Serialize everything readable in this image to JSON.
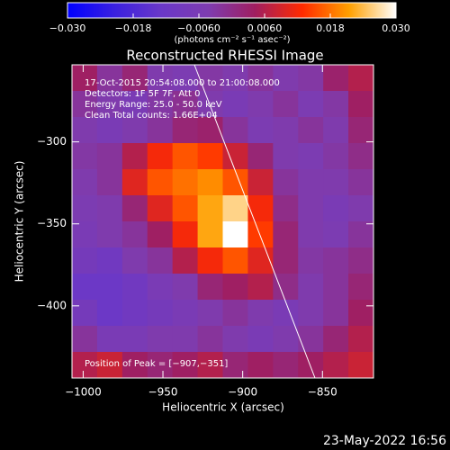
{
  "chart_data": {
    "type": "heatmap",
    "title": "Reconstructed RHESSI Image",
    "colorbar_label": "(photons cm⁻² s⁻¹ asec⁻²)",
    "x_label": "Heliocentric X (arcsec)",
    "y_label": "Heliocentric Y (arcsec)",
    "annotations": [
      "17-Oct-2015 20:54:08.000 to 21:00:08.000",
      "Detectors: 1F 5F 7F, Att 0",
      "Energy Range: 25.0 - 50.0 keV",
      "Clean    Total counts: 1.66E+04"
    ],
    "peak_label": "Position of Peak = [−907,−351]",
    "footer": "23-May-2022 16:56",
    "colormap": [
      "#0000ff",
      "#3a20e0",
      "#6a38c8",
      "#7e3cb0",
      "#a01e60",
      "#ff2a00",
      "#ffa000",
      "#ffffff"
    ],
    "clim": [
      -0.03,
      0.03
    ],
    "cticks": [
      {
        "value": -0.03,
        "label": "−0.030"
      },
      {
        "value": -0.018,
        "label": "−0.018"
      },
      {
        "value": -0.006,
        "label": "−0.0060"
      },
      {
        "value": 0.006,
        "label": "0.0060"
      },
      {
        "value": 0.018,
        "label": "0.018"
      },
      {
        "value": 0.03,
        "label": "0.030"
      }
    ],
    "xlim": [
      -1007,
      -818
    ],
    "ylim": [
      -444,
      -253
    ],
    "xticks": [
      {
        "value": -1000,
        "label": "−1000"
      },
      {
        "value": -950,
        "label": "−950"
      },
      {
        "value": -900,
        "label": "−900"
      },
      {
        "value": -850,
        "label": "−850"
      }
    ],
    "yticks": [
      {
        "value": -300,
        "label": "−300"
      },
      {
        "value": -350,
        "label": "−350"
      },
      {
        "value": -400,
        "label": "−400"
      }
    ],
    "z": [
      [
        0.004,
        -0.002,
        0.002,
        -0.004,
        -0.005,
        -0.003,
        -0.004,
        -0.002,
        -0.004,
        -0.003,
        0.003,
        0.006
      ],
      [
        -0.002,
        -0.004,
        -0.006,
        -0.003,
        -0.001,
        -0.004,
        -0.006,
        -0.004,
        -0.002,
        -0.005,
        -0.003,
        0.004
      ],
      [
        -0.004,
        -0.006,
        -0.004,
        -0.002,
        0.002,
        0.003,
        -0.002,
        -0.005,
        -0.004,
        -0.002,
        -0.004,
        0.002
      ],
      [
        -0.003,
        -0.002,
        0.006,
        0.012,
        0.016,
        0.014,
        0.008,
        0.002,
        -0.004,
        -0.005,
        -0.003,
        0.0
      ],
      [
        -0.004,
        -0.002,
        0.01,
        0.016,
        0.018,
        0.02,
        0.016,
        0.008,
        -0.002,
        -0.004,
        -0.004,
        -0.002
      ],
      [
        -0.005,
        -0.004,
        0.002,
        0.01,
        0.016,
        0.022,
        0.026,
        0.012,
        0.0,
        -0.004,
        -0.006,
        -0.004
      ],
      [
        -0.006,
        -0.004,
        -0.002,
        0.004,
        0.012,
        0.022,
        0.03,
        0.014,
        0.002,
        -0.004,
        -0.005,
        -0.002
      ],
      [
        -0.008,
        -0.01,
        -0.004,
        -0.002,
        0.006,
        0.012,
        0.016,
        0.01,
        0.002,
        -0.003,
        -0.002,
        0.0
      ],
      [
        -0.012,
        -0.012,
        -0.01,
        -0.006,
        -0.004,
        0.002,
        0.004,
        0.006,
        0.0,
        -0.004,
        -0.002,
        0.002
      ],
      [
        -0.008,
        -0.012,
        -0.01,
        -0.008,
        -0.006,
        -0.004,
        -0.002,
        -0.004,
        -0.006,
        -0.004,
        -0.002,
        0.004
      ],
      [
        -0.002,
        -0.006,
        -0.006,
        -0.004,
        -0.004,
        -0.002,
        -0.004,
        -0.006,
        -0.004,
        -0.002,
        0.002,
        0.006
      ],
      [
        0.006,
        0.008,
        0.004,
        0.002,
        0.004,
        0.006,
        0.002,
        0.004,
        0.002,
        0.004,
        0.006,
        0.008
      ]
    ]
  }
}
